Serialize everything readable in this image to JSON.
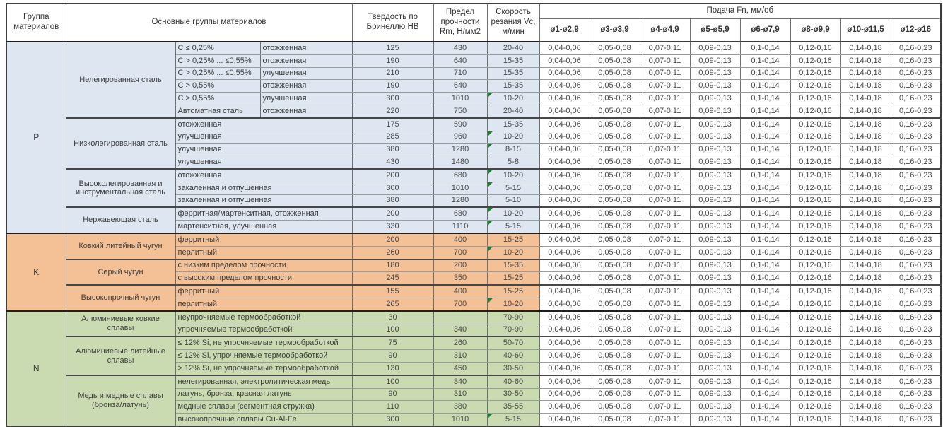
{
  "header": {
    "group_col": "Группа материалов",
    "main_col": "Основные группы материалов",
    "hb_col": "Твердость по Бринеллю HB",
    "rm_col": "Предел прочности Rm, Н/мм2",
    "vc_col": "Скорость резания Vc, м/мин",
    "feed_col": "Подача Fn, мм/об",
    "feed_diameters": [
      "ø1-ø2,9",
      "ø3-ø3,9",
      "ø4-ø4,9",
      "ø5-ø5,9",
      "ø6-ø7,9",
      "ø8-ø9,9",
      "ø10-ø11,5",
      "ø12-ø16"
    ]
  },
  "feed_values": [
    "0,04-0,06",
    "0,05-0,08",
    "0,07-0,11",
    "0,09-0,13",
    "0,1-0,14",
    "0,12-0,16",
    "0,14-0,18",
    "0,16-0,23"
  ],
  "colors": {
    "group_p": "#dde6f1",
    "group_k": "#f4c096",
    "group_n": "#cbdbb1",
    "flag": "#1e7e34"
  },
  "groups": [
    {
      "code": "P",
      "color": "#dde6f1",
      "subgroups": [
        {
          "name": "Нелегированная сталь",
          "rows": [
            {
              "d1": "C ≤ 0,25%",
              "d2": "отожженная",
              "hb": "125",
              "rm": "430",
              "vc": "20-40",
              "flag": false
            },
            {
              "d1": "C > 0,25% ... ≤0,55%",
              "d2": "отожженная",
              "hb": "190",
              "rm": "640",
              "vc": "15-35",
              "flag": false
            },
            {
              "d1": "C > 0,25% ... ≤0,55%",
              "d2": "улучшенная",
              "hb": "210",
              "rm": "710",
              "vc": "15-35",
              "flag": false
            },
            {
              "d1": "C > 0,55%",
              "d2": "отожженная",
              "hb": "190",
              "rm": "640",
              "vc": "15-35",
              "flag": false
            },
            {
              "d1": "C > 0,55%",
              "d2": "улучшенная",
              "hb": "300",
              "rm": "1010",
              "vc": "10-20",
              "flag": true
            },
            {
              "d1": "Автоматная сталь",
              "d2": "отожженная",
              "hb": "220",
              "rm": "750",
              "vc": "20-40",
              "flag": false
            }
          ]
        },
        {
          "name": "Низколегированная сталь",
          "rows": [
            {
              "d": "отожженная",
              "hb": "175",
              "rm": "590",
              "vc": "15-35",
              "flag": false
            },
            {
              "d": "улучшенная",
              "hb": "285",
              "rm": "960",
              "vc": "10-20",
              "flag": true
            },
            {
              "d": "улучшенная",
              "hb": "380",
              "rm": "1280",
              "vc": "8-15",
              "flag": true
            },
            {
              "d": "улучшенная",
              "hb": "430",
              "rm": "1480",
              "vc": "5-8",
              "flag": false
            }
          ]
        },
        {
          "name": "Высоколегированная и инструментальная сталь",
          "rows": [
            {
              "d": "отожженная",
              "hb": "200",
              "rm": "680",
              "vc": "10-20",
              "flag": true
            },
            {
              "d": "закаленная и отпущенная",
              "hb": "300",
              "rm": "1010",
              "vc": "5-15",
              "flag": true
            },
            {
              "d": "закаленная и отпущенная",
              "hb": "380",
              "rm": "1280",
              "vc": "5-10",
              "flag": false
            }
          ]
        },
        {
          "name": "Нержавеющая сталь",
          "rows": [
            {
              "d": "ферритная/мартенситная, отожженная",
              "hb": "200",
              "rm": "680",
              "vc": "10-20",
              "flag": true
            },
            {
              "d": "мартенситная, улучшенная",
              "hb": "330",
              "rm": "1110",
              "vc": "5-15",
              "flag": true
            }
          ]
        }
      ]
    },
    {
      "code": "K",
      "color": "#f4c096",
      "subgroups": [
        {
          "name": "Ковкий литейный чугун",
          "rows": [
            {
              "d": "ферритный",
              "hb": "200",
              "rm": "400",
              "vc": "15-25",
              "flag": false
            },
            {
              "d": "перлитный",
              "hb": "260",
              "rm": "700",
              "vc": "10-20",
              "flag": true
            }
          ]
        },
        {
          "name": "Серый чугун",
          "rows": [
            {
              "d": "с низким пределом прочности",
              "hb": "180",
              "rm": "200",
              "vc": "15-35",
              "flag": false
            },
            {
              "d": "с высоким пределом прочности",
              "hb": "245",
              "rm": "350",
              "vc": "15-25",
              "flag": false
            }
          ]
        },
        {
          "name": "Высокопрочный чугун",
          "rows": [
            {
              "d": "ферритный",
              "hb": "155",
              "rm": "400",
              "vc": "15-25",
              "flag": false
            },
            {
              "d": "перлитный",
              "hb": "265",
              "rm": "700",
              "vc": "10-20",
              "flag": true
            }
          ]
        }
      ]
    },
    {
      "code": "N",
      "color": "#cbdbb1",
      "subgroups": [
        {
          "name": "Алюминиевые ковкие сплавы",
          "rows": [
            {
              "d": "неупрочняемые термообработкой",
              "hb": "30",
              "rm": "",
              "vc": "70-90",
              "flag": false
            },
            {
              "d": "упрочняемые термообработкой",
              "hb": "100",
              "rm": "340",
              "vc": "70-90",
              "flag": false
            }
          ]
        },
        {
          "name": "Алюминиевые литейные сплавы",
          "rows": [
            {
              "d": "≤ 12% Si, не упрочняемые термообработкой",
              "hb": "75",
              "rm": "260",
              "vc": "50-70",
              "flag": false
            },
            {
              "d": "≤ 12% Si, упрочняемые термообработкой",
              "hb": "90",
              "rm": "310",
              "vc": "40-60",
              "flag": false
            },
            {
              "d": "> 12% Si, не упрочняемые термообработкой",
              "hb": "130",
              "rm": "450",
              "vc": "30-50",
              "flag": false
            }
          ]
        },
        {
          "name": "Медь и медные сплавы (бронза/латунь)",
          "rows": [
            {
              "d": "нелегированная, электролитическая медь",
              "hb": "100",
              "rm": "340",
              "vc": "40-60",
              "flag": false
            },
            {
              "d": "латунь, бронза, красная латунь",
              "hb": "90",
              "rm": "310",
              "vc": "30-50",
              "flag": false
            },
            {
              "d": "медные сплавы (сегментная стружка)",
              "hb": "110",
              "rm": "380",
              "vc": "35-55",
              "flag": false
            },
            {
              "d": "высокопрочные сплавы Cu-Al-Fe",
              "hb": "300",
              "rm": "1010",
              "vc": "5-15",
              "flag": true
            }
          ]
        }
      ]
    }
  ]
}
